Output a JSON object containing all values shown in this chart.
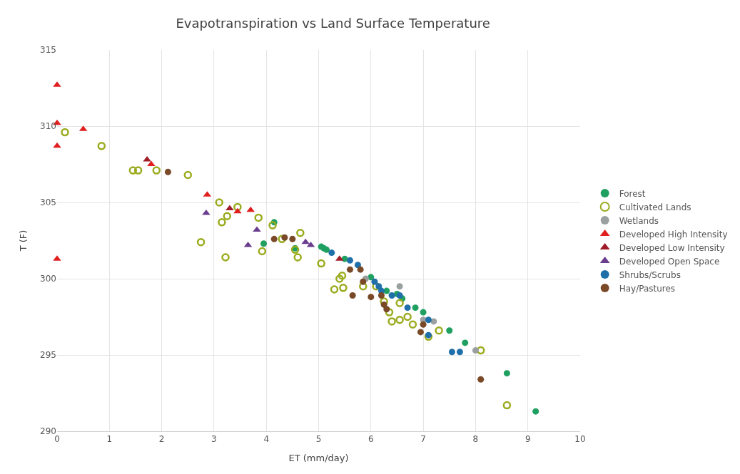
{
  "chart_data": {
    "type": "scatter",
    "title": "Evapotranspiration vs Land Surface Temperature",
    "xlabel": "ET (mm/day)",
    "ylabel": "T (F)",
    "xlim": [
      0,
      10
    ],
    "xticks": [
      0,
      1,
      2,
      3,
      4,
      5,
      6,
      7,
      8,
      9,
      10
    ],
    "ylim": [
      290,
      315
    ],
    "yticks": [
      290,
      295,
      300,
      305,
      310,
      315
    ],
    "grid": true,
    "legend": "right",
    "series": [
      {
        "name": "Forest",
        "color": "#1fa060",
        "marker": "circle",
        "x": [
          3.95,
          4.15,
          4.55,
          5.05,
          5.1,
          5.15,
          5.5,
          6.0,
          6.3,
          6.5,
          6.6,
          6.85,
          7.0,
          7.5,
          7.8,
          8.6,
          9.15
        ],
        "values": [
          302.3,
          303.7,
          302.0,
          302.1,
          302.0,
          301.9,
          301.3,
          300.1,
          299.2,
          299.0,
          298.7,
          298.1,
          297.8,
          296.6,
          295.8,
          293.8,
          291.3
        ]
      },
      {
        "name": "Cultivated Lands",
        "color": "#9bab1e",
        "marker": "circle-open",
        "x": [
          0.15,
          0.85,
          1.45,
          1.55,
          1.9,
          2.5,
          2.75,
          3.1,
          3.15,
          3.22,
          3.25,
          3.45,
          3.85,
          3.92,
          4.12,
          4.3,
          4.55,
          4.6,
          4.65,
          5.05,
          5.3,
          5.4,
          5.45,
          5.47,
          5.85,
          6.1,
          6.25,
          6.35,
          6.4,
          6.55,
          6.55,
          6.7,
          6.8,
          7.1,
          7.3,
          8.1,
          8.6
        ],
        "values": [
          309.6,
          308.7,
          307.1,
          307.1,
          307.1,
          306.8,
          302.4,
          305.0,
          303.7,
          301.4,
          304.1,
          304.7,
          304.0,
          301.8,
          303.5,
          302.6,
          301.9,
          301.4,
          303.0,
          301.0,
          299.3,
          300.0,
          300.2,
          299.4,
          299.5,
          299.5,
          298.5,
          297.8,
          297.2,
          297.3,
          298.4,
          297.5,
          297.0,
          296.2,
          296.6,
          295.3,
          291.7
        ]
      },
      {
        "name": "Wetlands",
        "color": "#9aa0a0",
        "marker": "circle",
        "x": [
          5.9,
          6.55,
          7.0,
          7.2,
          8.0
        ],
        "values": [
          300.0,
          299.5,
          297.3,
          297.2,
          295.3
        ]
      },
      {
        "name": "Developed High Intensity",
        "color": "#e02020",
        "marker": "triangle",
        "x": [
          0,
          0,
          0,
          0,
          0.5,
          1.8,
          2.87,
          3.45,
          3.7
        ],
        "values": [
          312.7,
          310.2,
          308.7,
          301.3,
          309.8,
          307.5,
          305.5,
          304.4,
          304.5
        ]
      },
      {
        "name": "Developed Low Intensity",
        "color": "#a01c28",
        "marker": "triangle",
        "x": [
          1.72,
          3.3,
          5.4
        ],
        "values": [
          307.8,
          304.6,
          301.3
        ]
      },
      {
        "name": "Developed Open Space",
        "color": "#6a3d8f",
        "marker": "triangle",
        "x": [
          2.85,
          3.65,
          3.82,
          4.75,
          4.85
        ],
        "values": [
          304.3,
          302.2,
          303.2,
          302.4,
          302.2
        ]
      },
      {
        "name": "Shrubs/Scrubs",
        "color": "#1f6fa8",
        "marker": "circle",
        "x": [
          5.25,
          5.6,
          5.75,
          6.07,
          6.15,
          6.2,
          6.4,
          6.55,
          6.7,
          7.1,
          7.1,
          7.55,
          7.7
        ],
        "values": [
          301.7,
          301.2,
          300.9,
          299.8,
          299.5,
          299.2,
          298.9,
          298.9,
          298.1,
          297.3,
          296.3,
          295.2,
          295.2
        ]
      },
      {
        "name": "Hay/Pastures",
        "color": "#7a4a28",
        "marker": "circle",
        "x": [
          2.12,
          4.15,
          4.35,
          4.5,
          5.6,
          5.65,
          5.8,
          5.85,
          6.0,
          6.2,
          6.25,
          6.3,
          6.95,
          7.0,
          8.1
        ],
        "values": [
          307.0,
          302.6,
          302.7,
          302.6,
          300.6,
          298.9,
          300.6,
          299.8,
          298.8,
          298.9,
          298.3,
          298.0,
          296.5,
          297.0,
          293.4
        ]
      }
    ]
  }
}
